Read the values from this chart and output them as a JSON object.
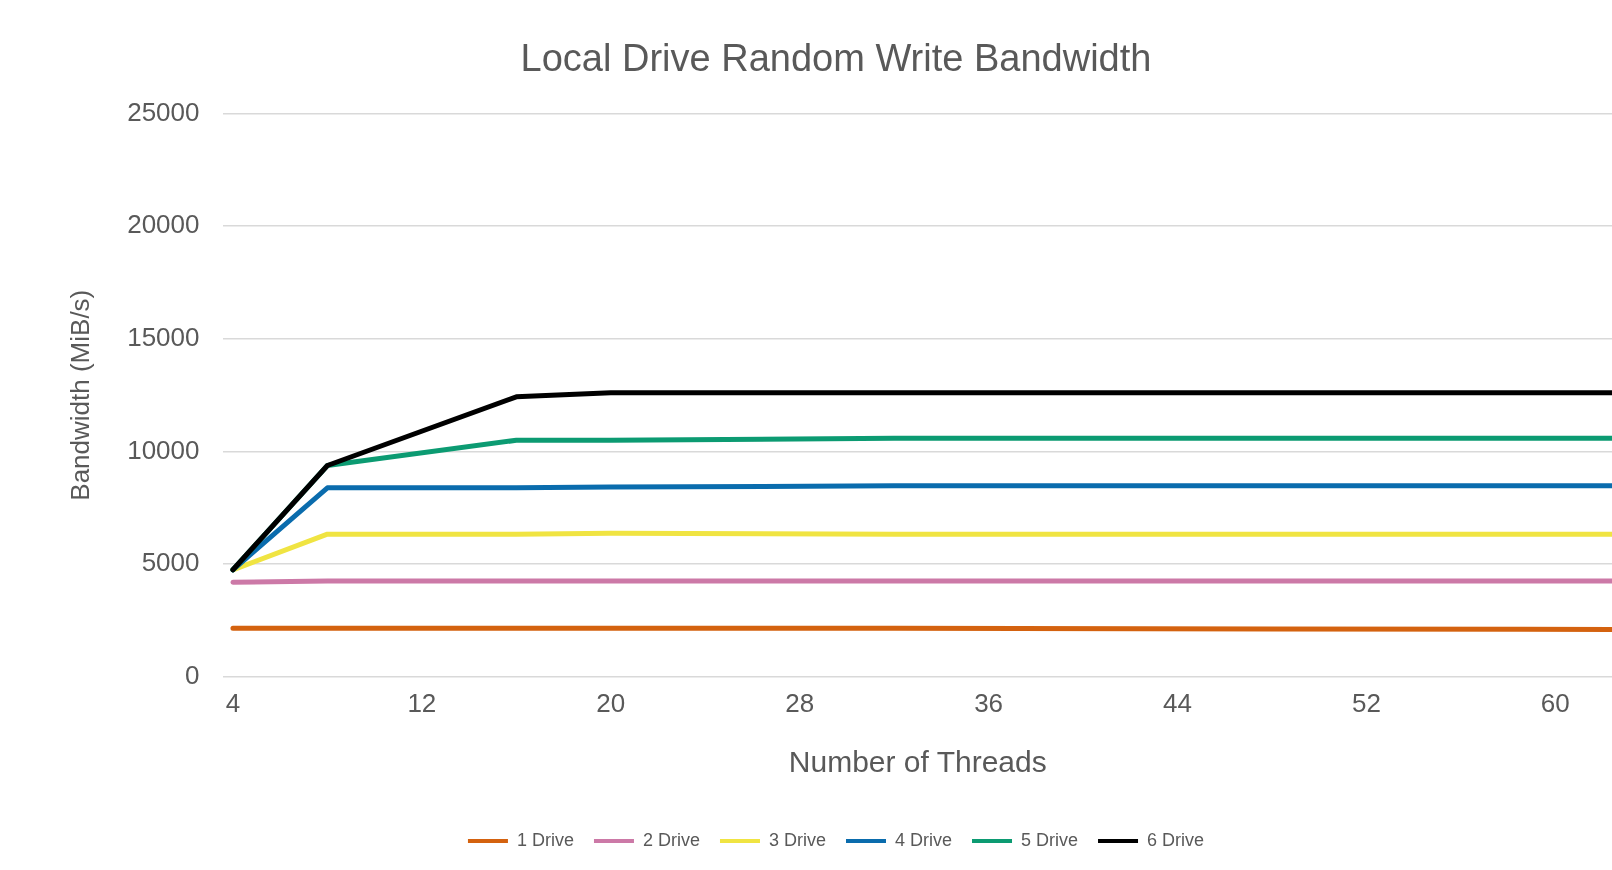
{
  "chart_data": {
    "type": "line",
    "title": "Local Drive Random Write Bandwidth",
    "xlabel": "Number of Threads",
    "ylabel": "Bandwidth (MiB/s)",
    "x": [
      4,
      8,
      16,
      20,
      32,
      62.4
    ],
    "series": [
      {
        "name": "1 Drive",
        "color": "#d4620f",
        "values": [
          2150,
          2150,
          2150,
          2150,
          2150,
          2100
        ]
      },
      {
        "name": "2 Drive",
        "color": "#cc79a7",
        "values": [
          4200,
          4250,
          4250,
          4250,
          4250,
          4250
        ]
      },
      {
        "name": "3 Drive",
        "color": "#f0e442",
        "values": [
          4750,
          6330,
          6330,
          6370,
          6330,
          6330
        ]
      },
      {
        "name": "4 Drive",
        "color": "#0a6cad",
        "values": [
          4750,
          8390,
          8390,
          8420,
          8480,
          8480
        ]
      },
      {
        "name": "5 Drive",
        "color": "#0c9b72",
        "values": [
          4750,
          9380,
          10500,
          10500,
          10590,
          10590
        ]
      },
      {
        "name": "6 Drive",
        "color": "#000000",
        "values": [
          4750,
          9380,
          12430,
          12610,
          12610,
          12610
        ]
      }
    ],
    "xlim": [
      3.6,
      62.4
    ],
    "xticks": [
      4,
      12,
      20,
      28,
      36,
      44,
      52,
      60
    ],
    "ylim": [
      0,
      25000
    ],
    "yticks": [
      0,
      5000,
      10000,
      15000,
      20000,
      25000
    ],
    "grid": "y",
    "legend": "bottom",
    "marker": "none",
    "line_style": "solid"
  }
}
